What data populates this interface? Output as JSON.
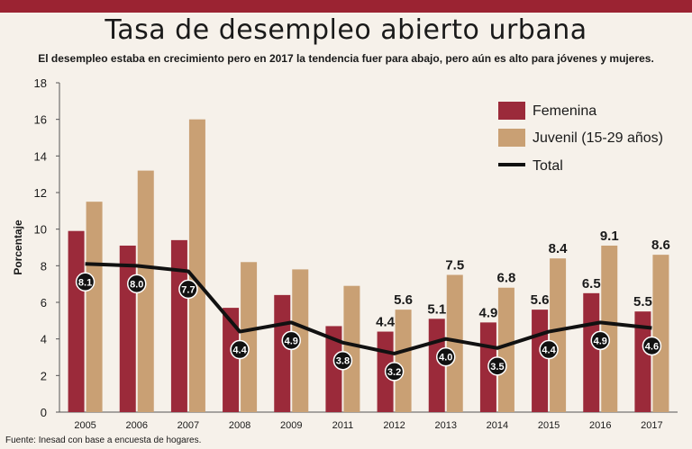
{
  "colors": {
    "femenina": "#9b2a3a",
    "juvenil": "#c9a074",
    "total": "#111111",
    "topbar": "#9b2332"
  },
  "chart_data": {
    "type": "bar",
    "title": "Tasa de desempleo abierto urbana",
    "subtitle": "El desempleo estaba en crecimiento pero en 2017 la tendencia fuer para abajo, pero aún es alto para jóvenes y mujeres.",
    "ylabel": "Porcentaje",
    "xlabel": "",
    "ylim": [
      0,
      18
    ],
    "yticks": [
      0,
      2,
      4,
      6,
      8,
      10,
      12,
      14,
      16,
      18
    ],
    "categories": [
      "2005",
      "2006",
      "2007",
      "2008",
      "2009",
      "2011",
      "2012",
      "2013",
      "2014",
      "2015",
      "2016",
      "2017"
    ],
    "series": [
      {
        "name": "Femenina",
        "kind": "bar",
        "values": [
          9.9,
          9.1,
          9.4,
          5.7,
          6.4,
          4.7,
          4.4,
          5.1,
          4.9,
          5.6,
          6.5,
          5.5
        ],
        "labels": [
          "",
          "",
          "",
          "",
          "",
          "",
          "4.4",
          "5.1",
          "4.9",
          "5.6",
          "6.5",
          "5.5"
        ]
      },
      {
        "name": "Juvenil (15-29 años)",
        "kind": "bar",
        "values": [
          11.5,
          13.2,
          16.0,
          8.2,
          7.8,
          6.9,
          5.6,
          7.5,
          6.8,
          8.4,
          9.1,
          8.6
        ],
        "labels": [
          "",
          "",
          "",
          "",
          "",
          "",
          "5.6",
          "7.5",
          "6.8",
          "8.4",
          "9.1",
          "8.6"
        ]
      },
      {
        "name": "Total",
        "kind": "line",
        "values": [
          8.1,
          8.0,
          7.7,
          4.4,
          4.9,
          3.8,
          3.2,
          4.0,
          3.5,
          4.4,
          4.9,
          4.6
        ],
        "labels": [
          "8.1",
          "8.0",
          "7.7",
          "4.4",
          "4.9",
          "3.8",
          "3.2",
          "4.0",
          "3.5",
          "4.4",
          "4.9",
          "4.6"
        ]
      }
    ],
    "grid": false,
    "legend": "top-right"
  },
  "source": "Fuente: Inesad con base a encuesta de hogares."
}
